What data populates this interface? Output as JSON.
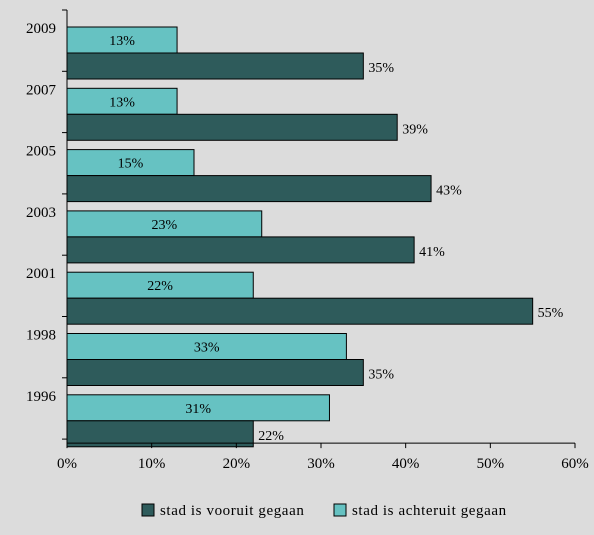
{
  "chart_data": {
    "type": "bar",
    "orientation": "horizontal",
    "categories": [
      "2009",
      "2007",
      "2005",
      "2003",
      "2001",
      "1998",
      "1996"
    ],
    "series": [
      {
        "name": "stad is achteruit gegaan",
        "color": "#66c2c2",
        "values": [
          13,
          13,
          15,
          23,
          22,
          33,
          31
        ],
        "labels": [
          "13%",
          "13%",
          "15%",
          "23%",
          "22%",
          "33%",
          "31%"
        ]
      },
      {
        "name": "stad is vooruit gegaan",
        "color": "#2e5b5b",
        "values": [
          35,
          39,
          43,
          41,
          55,
          35,
          22
        ],
        "labels": [
          "35%",
          "39%",
          "43%",
          "41%",
          "55%",
          "35%",
          "22%"
        ]
      }
    ],
    "xlim": [
      0,
      60
    ],
    "xticks": [
      "0%",
      "10%",
      "20%",
      "30%",
      "40%",
      "50%",
      "60%"
    ],
    "xtick_values": [
      0,
      10,
      20,
      30,
      40,
      50,
      60
    ],
    "legend": {
      "placement": "bottom",
      "items": [
        {
          "label": "stad is vooruit gegaan",
          "color": "#2e5b5b"
        },
        {
          "label": "stad is achteruit gegaan",
          "color": "#66c2c2"
        }
      ]
    },
    "grid": false,
    "background": "#dcdcdc"
  }
}
